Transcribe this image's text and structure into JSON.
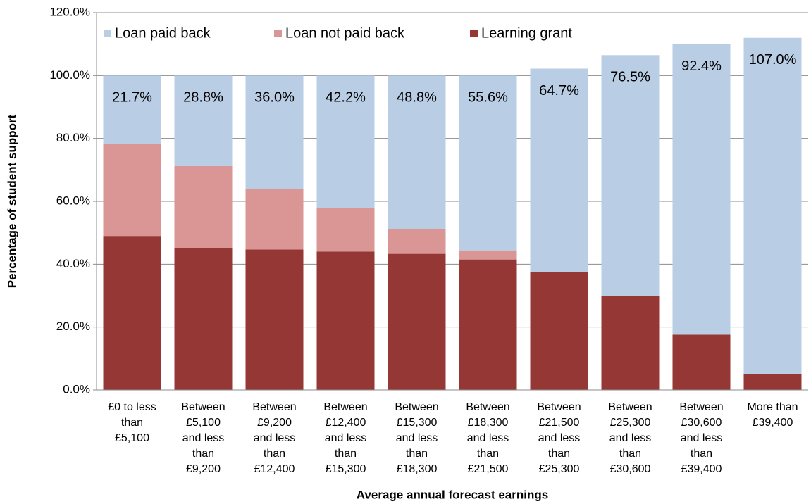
{
  "chart_data": {
    "type": "stacked_bar",
    "x_label": "Average annual forecast earnings",
    "y_label": "Percentage of student support",
    "categories": [
      "£0 to less\nthan\n£5,100",
      "Between\n£5,100\nand less\nthan\n£9,200",
      "Between\n£9,200\nand less\nthan\n£12,400",
      "Between\n£12,400\nand less\nthan\n£15,300",
      "Between\n£15,300\nand less\nthan\n£18,300",
      "Between\n£18,300\nand less\nthan\n£21,500",
      "Between\n£21,500\nand less\nthan\n£25,300",
      "Between\n£25,300\nand less\nthan\n£30,600",
      "Between\n£30,600\nand less\nthan\n£39,400",
      "More than\n£39,400"
    ],
    "series": [
      {
        "name": "Loan paid back",
        "color": "#b9cde5",
        "values": [
          21.7,
          28.8,
          36.0,
          42.2,
          48.8,
          55.6,
          64.7,
          76.5,
          92.4,
          107.0
        ],
        "value_labels": [
          "21.7%",
          "28.8%",
          "36.0%",
          "42.2%",
          "48.8%",
          "55.6%",
          "64.7%",
          "76.5%",
          "92.4%",
          "107.0%"
        ]
      },
      {
        "name": "Loan not paid back",
        "color": "#d99694",
        "values": [
          29.3,
          26.2,
          19.3,
          13.8,
          7.9,
          2.9,
          0,
          0,
          0,
          0
        ]
      },
      {
        "name": "Learning grant",
        "color": "#953735",
        "values": [
          49.0,
          45.0,
          44.7,
          44.0,
          43.3,
          41.5,
          37.5,
          30.0,
          17.6,
          5.0
        ]
      }
    ],
    "stack_order": "bottom_up_reverse",
    "ylim": [
      0,
      120
    ],
    "yticks": [
      {
        "value": 0,
        "label": "0.0%"
      },
      {
        "value": 20,
        "label": "20.0%"
      },
      {
        "value": 40,
        "label": "40.0%"
      },
      {
        "value": 60,
        "label": "60.0%"
      },
      {
        "value": 80,
        "label": "80.0%"
      },
      {
        "value": 100,
        "label": "100.0%"
      },
      {
        "value": 120,
        "label": "120.0%"
      }
    ],
    "grid": true,
    "legend": "top-left"
  }
}
